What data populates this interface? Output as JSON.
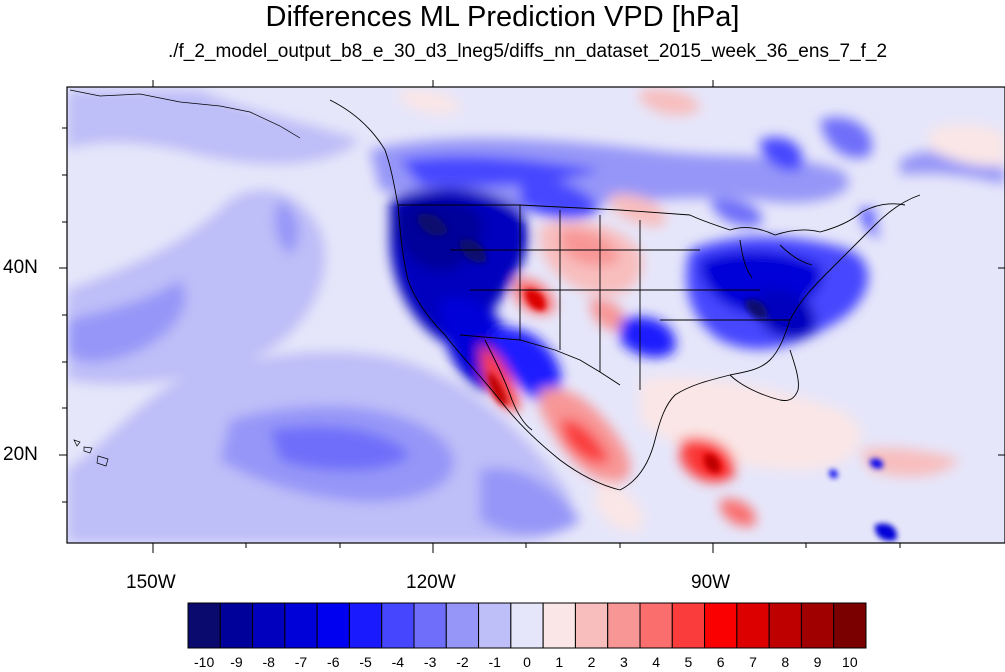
{
  "title": "Differences ML Prediction VPD [hPa]",
  "subtitle": "./f_2_model_output_b8_e_30_d3_lneg5/diffs_nn_dataset_2015_week_36_ens_7_f_2",
  "map": {
    "lon_labels": [
      "150W",
      "120W",
      "90W"
    ],
    "lat_labels": [
      "40N",
      "20N"
    ]
  },
  "colorbar": {
    "labels": [
      "-10",
      "-9",
      "-8",
      "-7",
      "-6",
      "-5",
      "-4",
      "-3",
      "-2",
      "-1",
      "0",
      "1",
      "2",
      "3",
      "4",
      "5",
      "6",
      "7",
      "8",
      "9",
      "10"
    ],
    "colors": [
      "#0a0a6e",
      "#00009a",
      "#0000be",
      "#0000d8",
      "#0000f0",
      "#1a1aff",
      "#4646ff",
      "#6e6efa",
      "#9696f8",
      "#bebef8",
      "#e6e6fa",
      "#fae6e6",
      "#f8bebe",
      "#f89696",
      "#fa6e6e",
      "#fa3c3c",
      "#fa0000",
      "#dc0000",
      "#be0000",
      "#a00000",
      "#7a0000"
    ]
  }
}
